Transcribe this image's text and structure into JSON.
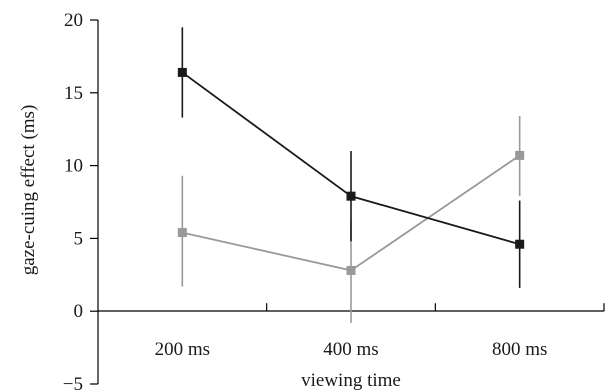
{
  "chart_data": {
    "type": "line",
    "title": "",
    "xlabel": "viewing time",
    "ylabel": "gaze-cuing effect (ms)",
    "categories": [
      "200 ms",
      "400 ms",
      "800 ms"
    ],
    "ylim": [
      -5,
      20
    ],
    "yticks": [
      "−5",
      "0",
      "5",
      "10",
      "15",
      "20"
    ],
    "ytick_values": [
      -5,
      0,
      5,
      10,
      15,
      20
    ],
    "grid": false,
    "legend": "none",
    "series": [
      {
        "color": "#1a1a1a",
        "marker": "square",
        "values": [
          16.4,
          7.9,
          4.6
        ],
        "err_low": [
          13.3,
          4.8,
          1.6
        ],
        "err_high": [
          19.5,
          11.0,
          7.6
        ]
      },
      {
        "color": "#999999",
        "marker": "square",
        "values": [
          5.4,
          2.8,
          10.7
        ],
        "err_low": [
          1.7,
          -0.8,
          7.9
        ],
        "err_high": [
          9.3,
          6.3,
          13.4
        ]
      }
    ]
  }
}
